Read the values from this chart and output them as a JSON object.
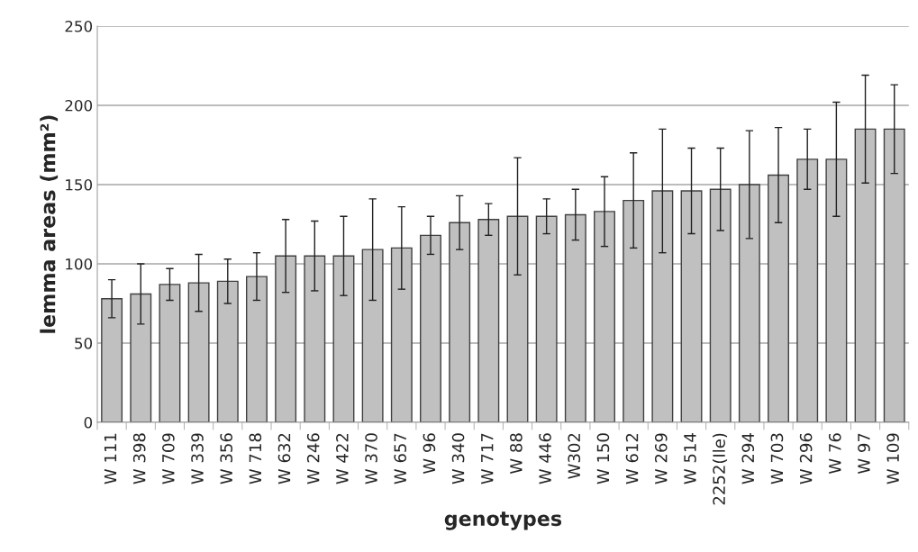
{
  "chart_data": {
    "type": "bar",
    "xlabel": "genotypes",
    "ylabel": "lemma areas (mm²)",
    "categories": [
      "W 111",
      "W 398",
      "W 709",
      "W 339",
      "W 356",
      "W 718",
      "W 632",
      "W 246",
      "W 422",
      "W 370",
      "W 657",
      "W 96",
      "W 340",
      "W 717",
      "W 88",
      "W 446",
      "W302",
      "W 150",
      "W 612",
      "W 269",
      "W 514",
      "2252(Ile)",
      "W 294",
      "W 703",
      "W 296",
      "W 76",
      "W 97",
      "W 109"
    ],
    "values": [
      78,
      81,
      87,
      88,
      89,
      92,
      105,
      105,
      105,
      109,
      110,
      118,
      126,
      128,
      130,
      130,
      131,
      133,
      140,
      146,
      146,
      147,
      150,
      156,
      166,
      166,
      185,
      185
    ],
    "errors": [
      12,
      19,
      10,
      18,
      14,
      15,
      23,
      22,
      25,
      32,
      26,
      12,
      17,
      10,
      37,
      11,
      16,
      22,
      30,
      39,
      27,
      26,
      34,
      30,
      19,
      36,
      34,
      28
    ],
    "color": "#c0c0c0",
    "ylim": [
      0,
      250
    ],
    "yticks": [
      0,
      50,
      100,
      150,
      200,
      250
    ],
    "grid": "y",
    "legend": false
  }
}
